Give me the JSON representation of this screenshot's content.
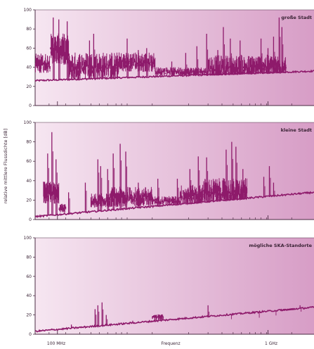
{
  "chart_data": {
    "type": "line",
    "ylabel": "relative mittlere Flussdichte  [dB]",
    "xlabel": "Frequenz",
    "x_tick_labels": [
      "100 MHz",
      "1 GHz"
    ],
    "y_ticks": [
      0,
      20,
      40,
      60,
      80,
      100
    ],
    "ylim": [
      0,
      100
    ],
    "colors": {
      "series": "#8e1a6b",
      "bg_light": "#f6e6f1",
      "bg_dark": "#d79dc6",
      "axis": "#4a2a42"
    },
    "panels": [
      {
        "name": "große Stadt",
        "baseline": [
          [
            0,
            26
          ],
          [
            1,
            36
          ]
        ],
        "segments": [
          {
            "from": 0.0,
            "to": 0.055,
            "base": 45,
            "amp": 14
          },
          {
            "from": 0.055,
            "to": 0.12,
            "base": 60,
            "amp": 22
          },
          {
            "from": 0.12,
            "to": 0.3,
            "base": 42,
            "amp": 20
          },
          {
            "from": 0.3,
            "to": 0.43,
            "base": 46,
            "amp": 14
          },
          {
            "from": 0.43,
            "to": 0.62,
            "base": 36,
            "amp": 6
          },
          {
            "from": 0.62,
            "to": 0.78,
            "base": 40,
            "amp": 18
          },
          {
            "from": 0.78,
            "to": 0.9,
            "base": 42,
            "amp": 16
          }
        ],
        "spikes": [
          [
            0.065,
            92
          ],
          [
            0.085,
            90
          ],
          [
            0.115,
            88
          ],
          [
            0.195,
            68
          ],
          [
            0.21,
            75
          ],
          [
            0.33,
            70
          ],
          [
            0.37,
            58
          ],
          [
            0.4,
            60
          ],
          [
            0.49,
            46
          ],
          [
            0.54,
            55
          ],
          [
            0.58,
            62
          ],
          [
            0.615,
            75
          ],
          [
            0.655,
            58
          ],
          [
            0.675,
            82
          ],
          [
            0.7,
            70
          ],
          [
            0.735,
            68
          ],
          [
            0.81,
            70
          ],
          [
            0.835,
            60
          ],
          [
            0.855,
            72
          ],
          [
            0.875,
            92
          ],
          [
            0.885,
            82
          ]
        ]
      },
      {
        "name": "kleine Stadt",
        "baseline": [
          [
            0,
            3
          ],
          [
            1,
            28
          ]
        ],
        "segments": [
          {
            "from": 0.03,
            "to": 0.085,
            "base": 28,
            "amp": 16
          },
          {
            "from": 0.085,
            "to": 0.11,
            "base": 12,
            "amp": 6
          },
          {
            "from": 0.2,
            "to": 0.27,
            "base": 20,
            "amp": 10
          },
          {
            "from": 0.27,
            "to": 0.42,
            "base": 24,
            "amp": 14
          },
          {
            "from": 0.42,
            "to": 0.52,
            "base": 20,
            "amp": 6
          },
          {
            "from": 0.52,
            "to": 0.6,
            "base": 26,
            "amp": 14
          },
          {
            "from": 0.6,
            "to": 0.76,
            "base": 30,
            "amp": 18
          }
        ],
        "spikes": [
          [
            0.045,
            68
          ],
          [
            0.06,
            90
          ],
          [
            0.075,
            62
          ],
          [
            0.12,
            28
          ],
          [
            0.18,
            38
          ],
          [
            0.225,
            62
          ],
          [
            0.235,
            55
          ],
          [
            0.26,
            52
          ],
          [
            0.28,
            68
          ],
          [
            0.305,
            78
          ],
          [
            0.325,
            70
          ],
          [
            0.37,
            38
          ],
          [
            0.44,
            42
          ],
          [
            0.51,
            42
          ],
          [
            0.555,
            52
          ],
          [
            0.585,
            65
          ],
          [
            0.615,
            64
          ],
          [
            0.685,
            72
          ],
          [
            0.705,
            80
          ],
          [
            0.72,
            75
          ],
          [
            0.745,
            52
          ],
          [
            0.82,
            44
          ],
          [
            0.84,
            55
          ],
          [
            0.855,
            38
          ]
        ]
      },
      {
        "name": "mögliche SKA-Standorte",
        "baseline": [
          [
            0,
            3
          ],
          [
            1,
            28
          ]
        ],
        "segments": [
          {
            "from": 0.42,
            "to": 0.46,
            "base": 18,
            "amp": 4
          },
          {
            "from": 0.88,
            "to": 0.93,
            "base": 25,
            "amp": 2
          }
        ],
        "spikes": [
          [
            0.06,
            6
          ],
          [
            0.13,
            10
          ],
          [
            0.16,
            8
          ],
          [
            0.215,
            26
          ],
          [
            0.225,
            30
          ],
          [
            0.24,
            33
          ],
          [
            0.255,
            20
          ],
          [
            0.3,
            12
          ],
          [
            0.35,
            14
          ],
          [
            0.43,
            20
          ],
          [
            0.45,
            19
          ],
          [
            0.62,
            30
          ],
          [
            0.7,
            20
          ],
          [
            0.8,
            22
          ],
          [
            0.86,
            25
          ],
          [
            0.95,
            30
          ]
        ]
      }
    ]
  }
}
